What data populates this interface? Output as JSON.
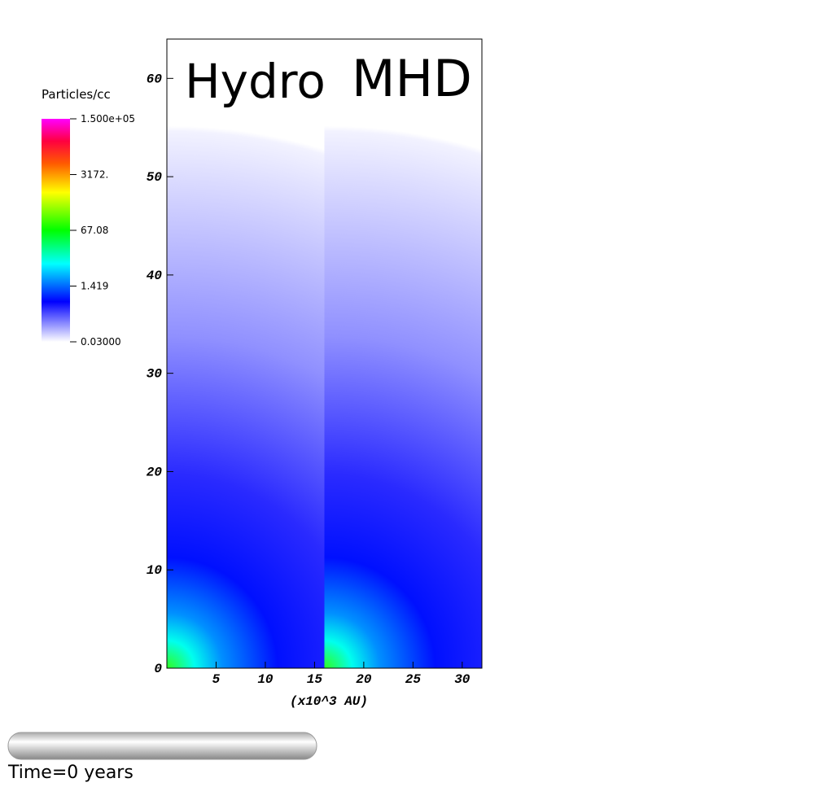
{
  "legend": {
    "title": "Particles/cc",
    "labels": [
      "1.500e+05",
      "3172.",
      "67.08",
      "1.419",
      "0.03000"
    ]
  },
  "plot": {
    "panels": [
      "Hydro",
      "MHD"
    ],
    "xlabel": "(x10^3 AU)",
    "xlim": [
      0,
      32
    ],
    "xticks": [
      5,
      10,
      15,
      20,
      25,
      30
    ],
    "ylim": [
      0,
      64
    ],
    "yticks": [
      0,
      10,
      20,
      30,
      40,
      50,
      60
    ]
  },
  "time_label": "Time=0 years"
}
